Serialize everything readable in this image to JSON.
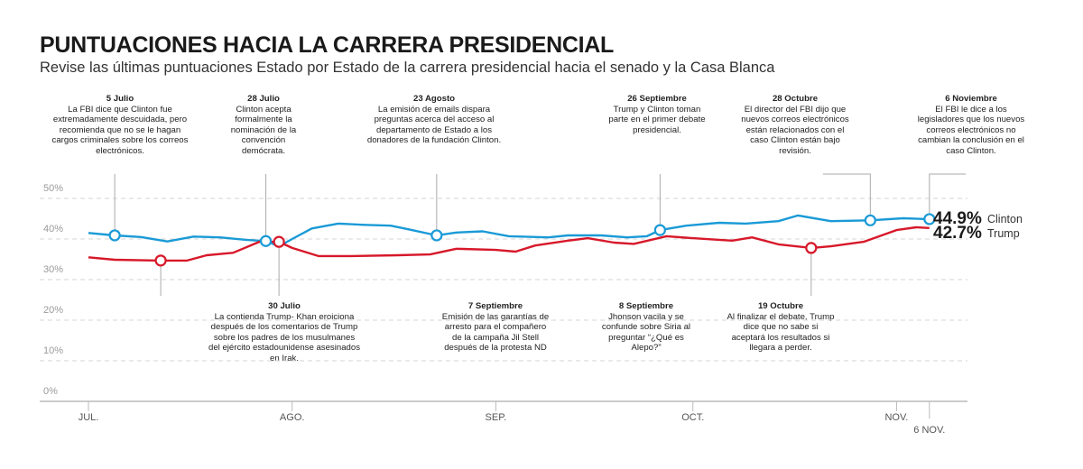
{
  "title": "PUNTUACIONES HACIA LA CARRERA PRESIDENCIAL",
  "subtitle": "Revise las últimas puntuaciones Estado por Estado de la carrera presidencial hacia el senado y la Casa Blanca",
  "annotations_top": [
    {
      "date": "5 Julio",
      "text": "La FBI dice que Clinton fue extremadamente descuidada, pero recomienda que no se le hagan cargos criminales sobre los correos electrónicos."
    },
    {
      "date": "28 Julio",
      "text": "Clinton acepta formalmente la nominación de la convención demócrata."
    },
    {
      "date": "23 Agosto",
      "text": "La emisión de emails dispara preguntas acerca del acceso al departamento de Estado a los donadores de la fundación Clinton."
    },
    {
      "date": "26 Septiembre",
      "text": "Trump y Clinton toman parte en el primer debate presidencial."
    },
    {
      "date": "28 Octubre",
      "text": "El director del FBI dijo que nuevos correos electrónicos están relacionados con el caso Clinton están bajo revisión."
    },
    {
      "date": "6 Noviembre",
      "text": "El FBI le dice a los legisladores que los nuevos correos electrónicos no cambian la conclusión en el caso Clinton."
    }
  ],
  "annotations_bottom": [
    {
      "date": "30 Julio",
      "text": "La contienda Trump- Khan eroiciona después de los comentarios de Trump sobre los padres de los musulmanes del ejército estadounidense asesinados en Irak."
    },
    {
      "date": "7 Septiembre",
      "text": "Emisión de las garantías de arresto para el compañero de la campaña Jil Stell después de la protesta ND"
    },
    {
      "date": "8 Septiembre",
      "text": "Jhonson vacila y se confunde sobre Siria al preguntar “¿Qué es Alepo?”"
    },
    {
      "date": "19 Octubre",
      "text": "Al finalizar el debate, Trump dice que no sabe si aceptará los resultados si llegara a perder."
    }
  ],
  "chart_data": {
    "type": "line",
    "title": "",
    "xlabel": "",
    "ylabel": "",
    "ylim": [
      0,
      50
    ],
    "yticks": [
      "0%",
      "10%",
      "20%",
      "30%",
      "40%",
      "50%"
    ],
    "xticks": [
      "JUL.",
      "AGO.",
      "SEP.",
      "OCT.",
      "NOV."
    ],
    "xtick_extra": "6 NOV.",
    "grid": true,
    "series": [
      {
        "name": "Clinton",
        "color": "#1a9ad6",
        "final_label": "44.9%",
        "points": [
          [
            "07-01",
            41.5
          ],
          [
            "07-05",
            40.9
          ],
          [
            "07-09",
            40.5
          ],
          [
            "07-13",
            39.4
          ],
          [
            "07-17",
            40.6
          ],
          [
            "07-21",
            40.4
          ],
          [
            "07-25",
            39.8
          ],
          [
            "07-28",
            39.5
          ],
          [
            "07-30",
            38.2
          ],
          [
            "08-01",
            40.0
          ],
          [
            "08-04",
            42.6
          ],
          [
            "08-08",
            43.8
          ],
          [
            "08-12",
            43.5
          ],
          [
            "08-16",
            43.3
          ],
          [
            "08-19",
            42.3
          ],
          [
            "08-23",
            40.9
          ],
          [
            "08-26",
            41.6
          ],
          [
            "08-30",
            41.9
          ],
          [
            "09-03",
            40.7
          ],
          [
            "09-09",
            40.4
          ],
          [
            "09-12",
            40.9
          ],
          [
            "09-17",
            40.9
          ],
          [
            "09-21",
            40.4
          ],
          [
            "09-24",
            40.7
          ],
          [
            "09-26",
            42.2
          ],
          [
            "09-30",
            43.3
          ],
          [
            "10-05",
            44.0
          ],
          [
            "10-09",
            43.8
          ],
          [
            "10-14",
            44.4
          ],
          [
            "10-17",
            45.8
          ],
          [
            "10-22",
            44.4
          ],
          [
            "10-28",
            44.6
          ],
          [
            "11-02",
            45.1
          ],
          [
            "11-06",
            44.9
          ]
        ],
        "markers": [
          "07-05",
          "07-28",
          "08-23",
          "09-26",
          "10-28",
          "11-06"
        ]
      },
      {
        "name": "Trump",
        "color": "#d7182a",
        "final_label": "42.7%",
        "points": [
          [
            "07-01",
            35.5
          ],
          [
            "07-05",
            34.9
          ],
          [
            "07-12",
            34.7
          ],
          [
            "07-16",
            34.7
          ],
          [
            "07-19",
            36.0
          ],
          [
            "07-23",
            36.6
          ],
          [
            "07-27",
            39.3
          ],
          [
            "07-30",
            39.3
          ],
          [
            "08-01",
            37.8
          ],
          [
            "08-05",
            35.8
          ],
          [
            "08-10",
            35.8
          ],
          [
            "08-17",
            36.0
          ],
          [
            "08-22",
            36.2
          ],
          [
            "08-26",
            37.6
          ],
          [
            "09-01",
            37.3
          ],
          [
            "09-04",
            36.9
          ],
          [
            "09-07",
            38.4
          ],
          [
            "09-12",
            39.6
          ],
          [
            "09-15",
            40.2
          ],
          [
            "09-19",
            39.1
          ],
          [
            "09-22",
            38.8
          ],
          [
            "09-27",
            40.7
          ],
          [
            "10-01",
            40.2
          ],
          [
            "10-05",
            39.8
          ],
          [
            "10-07",
            39.6
          ],
          [
            "10-10",
            40.4
          ],
          [
            "10-14",
            38.7
          ],
          [
            "10-19",
            37.8
          ],
          [
            "10-22",
            38.2
          ],
          [
            "10-27",
            39.3
          ],
          [
            "11-01",
            42.2
          ],
          [
            "11-04",
            42.9
          ],
          [
            "11-06",
            42.7
          ]
        ],
        "markers": [
          "07-12",
          "07-30",
          "10-19"
        ]
      }
    ]
  }
}
